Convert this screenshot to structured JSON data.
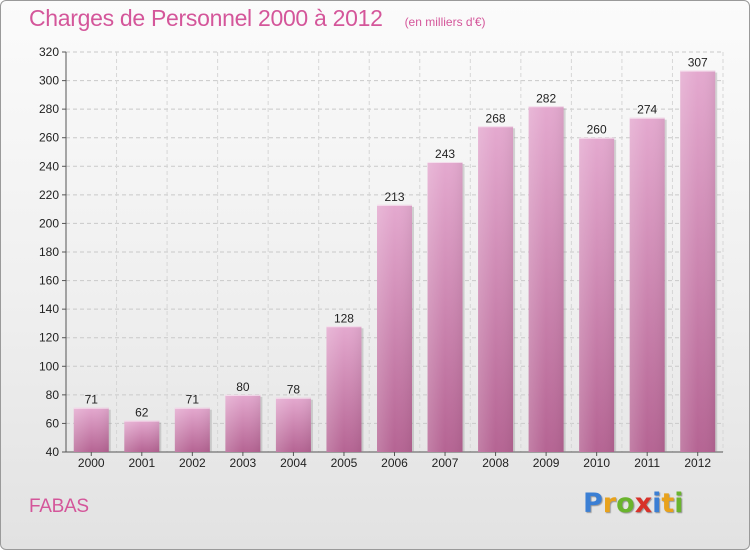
{
  "header": {
    "title": "Charges de Personnel 2000 à 2012",
    "subtitle": "(en milliers d'€)"
  },
  "footer": {
    "commune": "FABAS",
    "logo_letters": [
      {
        "char": "P",
        "color": "#3b7fd4"
      },
      {
        "char": "r",
        "color": "#e8a21c"
      },
      {
        "char": "o",
        "color": "#6ab42d"
      },
      {
        "char": "x",
        "color": "#d8322a"
      },
      {
        "char": "i",
        "color": "#3b7fd4"
      },
      {
        "char": "t",
        "color": "#e8a21c"
      },
      {
        "char": "i",
        "color": "#6ab42d"
      }
    ]
  },
  "chart_data": {
    "type": "bar",
    "title": "Charges de Personnel 2000 à 2012",
    "subtitle": "(en milliers d'€)",
    "categories": [
      "2000",
      "2001",
      "2002",
      "2003",
      "2004",
      "2005",
      "2006",
      "2007",
      "2008",
      "2009",
      "2010",
      "2011",
      "2012"
    ],
    "values": [
      71,
      62,
      71,
      80,
      78,
      128,
      213,
      243,
      268,
      282,
      260,
      274,
      307
    ],
    "ylim": [
      40,
      320
    ],
    "yticks": [
      40,
      60,
      80,
      100,
      120,
      140,
      160,
      180,
      200,
      220,
      240,
      260,
      280,
      300,
      320
    ],
    "grid": true,
    "bar_color": "#c670a4"
  }
}
